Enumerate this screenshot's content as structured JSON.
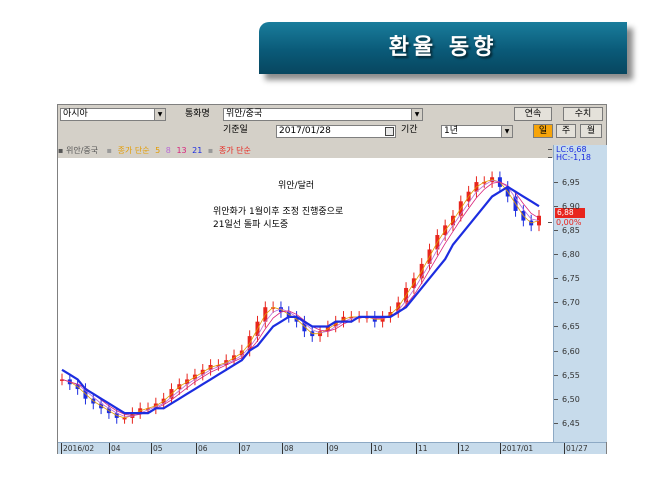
{
  "banner": {
    "title": "환율 동향"
  },
  "toolbar": {
    "region": "아시아",
    "currency_label": "통화명",
    "currency": "위안/중국",
    "connect_btn": "연속",
    "numeric_btn": "수치",
    "date_label": "기준일",
    "date": "2017/01/28",
    "period_label": "기간",
    "period": "1년",
    "day_btn": "일",
    "week_btn": "주",
    "month_btn": "월"
  },
  "legend": {
    "symbol": "위안/중국",
    "ma_label": "종가 단순",
    "ma_periods": [
      "5",
      "8",
      "13",
      "21"
    ],
    "ma2_label": "종가 단순",
    "colors": {
      "ma_label": "#e39b00",
      "p5": "#e39b00",
      "p8": "#b86bd7",
      "p13": "#d8237c",
      "p21": "#1c2de0",
      "ma2": "#e8251d"
    }
  },
  "annotation": {
    "title": "위안/달러",
    "line1": "위안화가 1월이후 조정 진행중으로",
    "line2": "21일선 돌파 시도중"
  },
  "chart_data": {
    "type": "line",
    "series_name": "위안/중국",
    "x_labels": [
      "2016/02",
      "04",
      "05",
      "06",
      "07",
      "08",
      "09",
      "10",
      "11",
      "12",
      "2017/01",
      "01/27"
    ],
    "ylim": [
      6.41,
      7.0
    ],
    "y_ticks": [
      6.45,
      6.5,
      6.55,
      6.6,
      6.65,
      6.7,
      6.75,
      6.8,
      6.85,
      6.9,
      6.95
    ],
    "y_tick_labels": [
      "6,45",
      "6,50",
      "6,55",
      "6,60",
      "6,65",
      "6,70",
      "6,75",
      "6,80",
      "6,85",
      "6,90",
      "6,95"
    ],
    "top_labels": {
      "lc": "LC:6,68",
      "hc": "HC:-1,18"
    },
    "current_price_label": "6,88",
    "change_label": "0,00%",
    "close": [
      6.54,
      6.53,
      6.52,
      6.5,
      6.49,
      6.48,
      6.47,
      6.46,
      6.46,
      6.47,
      6.48,
      6.48,
      6.49,
      6.5,
      6.52,
      6.53,
      6.54,
      6.55,
      6.56,
      6.57,
      6.57,
      6.58,
      6.59,
      6.6,
      6.63,
      6.66,
      6.69,
      6.69,
      6.68,
      6.67,
      6.66,
      6.64,
      6.63,
      6.64,
      6.65,
      6.66,
      6.67,
      6.67,
      6.67,
      6.67,
      6.66,
      6.67,
      6.68,
      6.7,
      6.73,
      6.75,
      6.78,
      6.81,
      6.84,
      6.86,
      6.88,
      6.91,
      6.93,
      6.95,
      6.95,
      6.96,
      6.94,
      6.92,
      6.89,
      6.87,
      6.86,
      6.88
    ],
    "ma21": [
      6.56,
      6.55,
      6.54,
      6.52,
      6.51,
      6.5,
      6.49,
      6.48,
      6.47,
      6.47,
      6.47,
      6.47,
      6.48,
      6.48,
      6.49,
      6.5,
      6.51,
      6.52,
      6.53,
      6.54,
      6.55,
      6.56,
      6.57,
      6.58,
      6.6,
      6.61,
      6.63,
      6.65,
      6.66,
      6.67,
      6.67,
      6.66,
      6.65,
      6.65,
      6.65,
      6.66,
      6.66,
      6.66,
      6.67,
      6.67,
      6.67,
      6.67,
      6.67,
      6.68,
      6.69,
      6.71,
      6.73,
      6.75,
      6.77,
      6.79,
      6.82,
      6.84,
      6.86,
      6.88,
      6.9,
      6.92,
      6.93,
      6.94,
      6.93,
      6.92,
      6.91,
      6.9
    ]
  }
}
